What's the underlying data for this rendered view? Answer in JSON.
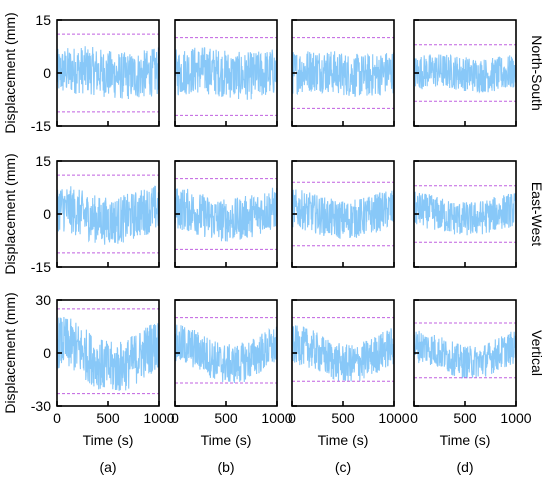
{
  "chart_data": {
    "type": "line",
    "columns": [
      {
        "panel_label": "(a)",
        "xlabel": "Time (s)"
      },
      {
        "panel_label": "(b)",
        "xlabel": "Time (s)"
      },
      {
        "panel_label": "(c)",
        "xlabel": "Time (s)"
      },
      {
        "panel_label": "(d)",
        "xlabel": "Time (s)"
      }
    ],
    "xlim": [
      0,
      1000
    ],
    "x_tick_values": [
      0,
      500,
      1000
    ],
    "x_tick_labels": [
      "0",
      "500",
      "1000"
    ],
    "rows": [
      {
        "title": "North-South",
        "ylabel": "Displacement (mm)",
        "ylim": [
          -15,
          15
        ],
        "y_tick_values": [
          15,
          0,
          -15
        ],
        "y_tick_labels": [
          "15",
          "0",
          "-15"
        ],
        "envelope": [
          {
            "upper": 11,
            "lower": -11,
            "peak_max": 12,
            "peak_min": -11
          },
          {
            "upper": 10,
            "lower": -12,
            "peak_max": 11,
            "peak_min": -12
          },
          {
            "upper": 10,
            "lower": -10,
            "peak_max": 10,
            "peak_min": -10
          },
          {
            "upper": 8,
            "lower": -8,
            "peak_max": 8,
            "peak_min": -8
          }
        ]
      },
      {
        "title": "East-West",
        "ylabel": "Displacement (mm)",
        "ylim": [
          -15,
          15
        ],
        "y_tick_values": [
          15,
          0,
          -15
        ],
        "y_tick_labels": [
          "15",
          "0",
          "-15"
        ],
        "envelope": [
          {
            "upper": 11,
            "lower": -11,
            "peak_max": 11,
            "peak_min": -11
          },
          {
            "upper": 10,
            "lower": -10,
            "peak_max": 11,
            "peak_min": -10
          },
          {
            "upper": 9,
            "lower": -9,
            "peak_max": 10,
            "peak_min": -9
          },
          {
            "upper": 8,
            "lower": -8,
            "peak_max": 9,
            "peak_min": -8
          }
        ]
      },
      {
        "title": "Vertical",
        "ylabel": "Displacement (mm)",
        "ylim": [
          -30,
          30
        ],
        "y_tick_values": [
          30,
          0,
          -30
        ],
        "y_tick_labels": [
          "30",
          "0",
          "-30"
        ],
        "envelope": [
          {
            "upper": 25,
            "lower": -23,
            "peak_max": 25,
            "peak_min": -23
          },
          {
            "upper": 20,
            "lower": -17,
            "peak_max": 21,
            "peak_min": -17
          },
          {
            "upper": 20,
            "lower": -16,
            "peak_max": 21,
            "peak_min": -16
          },
          {
            "upper": 17,
            "lower": -14,
            "peak_max": 17,
            "peak_min": -14
          }
        ]
      }
    ],
    "series_color": "#88c8f8",
    "envelope_line_color": "#c060e0",
    "grid": false
  }
}
